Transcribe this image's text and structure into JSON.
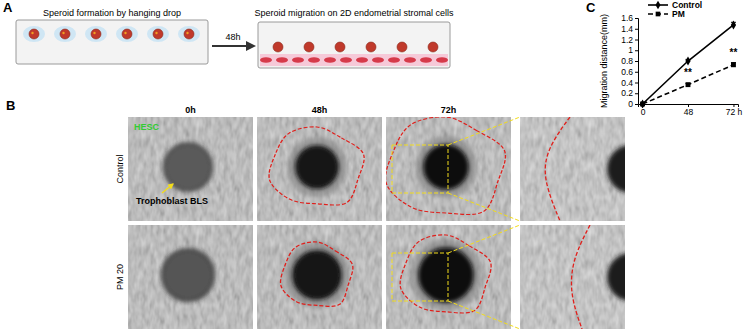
{
  "panel_a": {
    "label": "A",
    "step1": "Speroid formation by hanging drop",
    "interval": "48h",
    "step2": "Speroid migration on 2D endometrial stromal cells"
  },
  "panel_b": {
    "label": "B",
    "columns": [
      "0h",
      "48h",
      "72h"
    ],
    "rows": [
      "Control",
      "PM 20"
    ],
    "cell_label": "HESC",
    "spheroid_label": "Trophoblast BLS"
  },
  "panel_c": {
    "label": "C"
  },
  "chart_data": {
    "type": "line",
    "y_label": "Migration distance(mm)",
    "categories": [
      "0",
      "48",
      "72 h"
    ],
    "series": [
      {
        "name": "Control",
        "color": "#000000",
        "marker": "diamond",
        "line_style": "solid",
        "values": [
          0,
          0.8,
          1.47
        ],
        "error": [
          0,
          0.03,
          0.05
        ]
      },
      {
        "name": "PM",
        "color": "#000000",
        "marker": "square",
        "line_style": "dashed",
        "values": [
          0,
          0.36,
          0.73
        ],
        "error": [
          0,
          0.02,
          0.04
        ]
      }
    ],
    "annotations": [
      {
        "text": "**",
        "series": 1,
        "at": 1
      },
      {
        "text": "**",
        "series": 1,
        "at": 2
      }
    ],
    "ylim": [
      0,
      1.6
    ],
    "yticks": [
      0,
      0.2,
      0.4,
      0.6,
      0.8,
      1,
      1.2,
      1.4,
      1.6
    ],
    "grid": false,
    "legend": "upper left"
  }
}
